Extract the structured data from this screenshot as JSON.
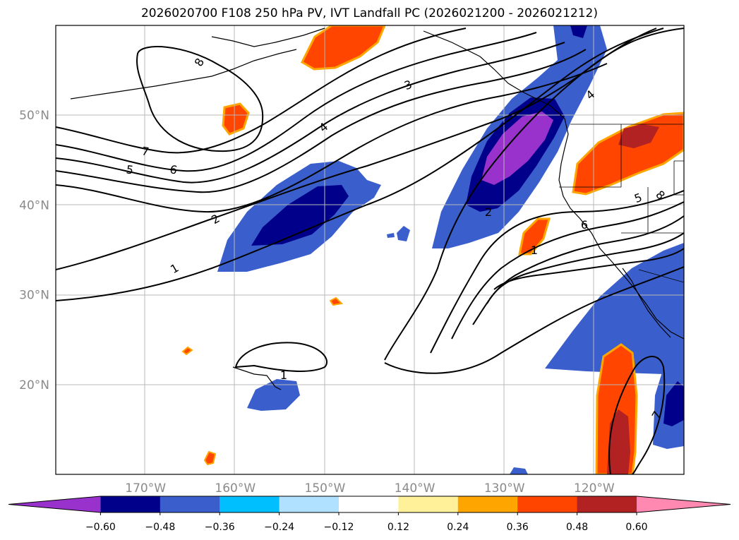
{
  "title": "2026020700 F108 250 hPa PV, IVT Landfall PC (2026021200 - 2026021212)",
  "map": {
    "lon_range": [
      -180,
      -110
    ],
    "lat_range": [
      10,
      60
    ],
    "lat_ticks": [
      {
        "value": 50,
        "label": "50°N"
      },
      {
        "value": 40,
        "label": "40°N"
      },
      {
        "value": 30,
        "label": "30°N"
      },
      {
        "value": 20,
        "label": "20°N"
      }
    ],
    "lon_ticks": [
      {
        "value": -170,
        "label": "170°W"
      },
      {
        "value": -160,
        "label": "160°W"
      },
      {
        "value": -150,
        "label": "150°W"
      },
      {
        "value": -140,
        "label": "140°W"
      },
      {
        "value": -130,
        "label": "130°W"
      },
      {
        "value": -120,
        "label": "120°W"
      }
    ],
    "gridlines": true,
    "contour_labels": [
      "8",
      "7",
      "6",
      "5",
      "4",
      "3",
      "2",
      "1",
      "1",
      "2",
      "1",
      "6",
      "5",
      "8",
      "4",
      "7"
    ]
  },
  "colorbar": {
    "ticks": [
      "−0.60",
      "−0.48",
      "−0.36",
      "−0.24",
      "−0.12",
      "0.12",
      "0.24",
      "0.36",
      "0.48",
      "0.60"
    ],
    "colors": [
      "#9932cc",
      "#00008b",
      "#3a5fcd",
      "#00bfff",
      "#b0e2ff",
      "#ffffff",
      "#fff09a",
      "#ffa500",
      "#ff4500",
      "#b22222",
      "#ff89b0"
    ],
    "extend": "both"
  }
}
